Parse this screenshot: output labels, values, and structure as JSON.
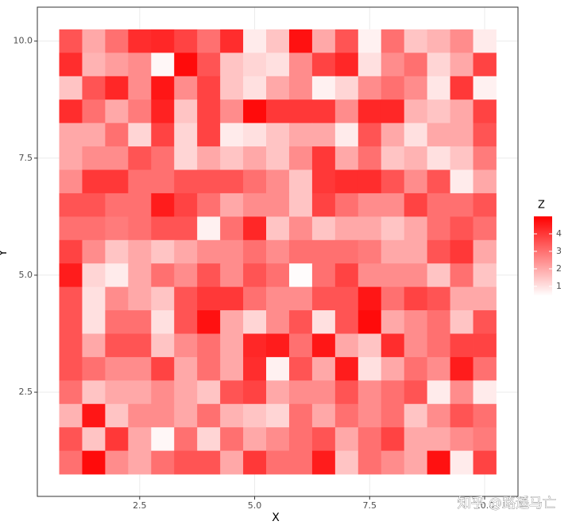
{
  "chart_data": {
    "type": "heatmap",
    "xlabel": "X",
    "ylabel": "Y",
    "x": [
      1,
      1.5,
      2,
      2.5,
      3,
      3.5,
      4,
      4.5,
      5,
      5.5,
      6,
      6.5,
      7,
      7.5,
      8,
      8.5,
      9,
      9.5,
      10
    ],
    "y": [
      10,
      9.5,
      9,
      8.5,
      8,
      7.5,
      7,
      6.5,
      6,
      5.5,
      5,
      4.5,
      4,
      3.5,
      3,
      2.5,
      2,
      1.5,
      1
    ],
    "z": [
      [
        3.5,
        2.0,
        3.0,
        4.2,
        4.3,
        3.8,
        3.0,
        4.2,
        0.8,
        1.5,
        4.7,
        2.0,
        3.5,
        0.7,
        3.0,
        1.5,
        1.8,
        2.5,
        0.8
      ],
      [
        4.2,
        1.8,
        2.2,
        2.5,
        0.6,
        4.8,
        3.5,
        1.5,
        1.2,
        1.0,
        2.5,
        3.8,
        4.3,
        1.0,
        2.5,
        3.0,
        1.2,
        2.0,
        3.8
      ],
      [
        1.5,
        3.5,
        4.3,
        2.5,
        4.6,
        2.5,
        3.8,
        1.5,
        1.0,
        2.0,
        2.5,
        0.7,
        1.2,
        2.5,
        3.0,
        2.5,
        0.9,
        4.0,
        0.7
      ],
      [
        4.2,
        3.0,
        2.0,
        2.8,
        4.4,
        1.5,
        3.8,
        2.5,
        4.8,
        4.0,
        4.0,
        4.0,
        2.5,
        4.3,
        4.3,
        1.8,
        1.5,
        2.0,
        3.8
      ],
      [
        2.0,
        2.0,
        3.0,
        1.2,
        3.8,
        1.2,
        3.8,
        0.8,
        1.0,
        1.5,
        2.0,
        2.0,
        0.8,
        3.5,
        2.0,
        1.0,
        2.0,
        2.0,
        3.5
      ],
      [
        2.0,
        2.5,
        2.5,
        3.5,
        3.0,
        1.2,
        2.0,
        1.5,
        2.0,
        1.5,
        2.5,
        4.0,
        2.0,
        3.0,
        1.5,
        1.8,
        1.0,
        1.5,
        2.8
      ],
      [
        2.5,
        4.0,
        4.0,
        3.0,
        3.0,
        3.5,
        3.5,
        3.5,
        3.0,
        2.5,
        1.5,
        4.0,
        4.2,
        4.2,
        3.5,
        2.5,
        3.5,
        0.8,
        2.0
      ],
      [
        3.5,
        3.5,
        3.0,
        3.0,
        4.5,
        3.8,
        3.0,
        2.0,
        2.5,
        2.5,
        1.5,
        3.8,
        3.0,
        2.5,
        2.5,
        3.8,
        3.0,
        3.0,
        3.5
      ],
      [
        3.0,
        3.0,
        2.8,
        3.0,
        3.5,
        3.5,
        0.7,
        3.0,
        4.3,
        1.5,
        2.5,
        1.5,
        2.0,
        2.0,
        1.5,
        2.0,
        3.0,
        3.5,
        3.0
      ],
      [
        3.8,
        2.5,
        1.5,
        2.0,
        1.5,
        2.0,
        2.5,
        2.5,
        3.0,
        2.5,
        3.0,
        3.0,
        3.0,
        2.8,
        2.0,
        2.0,
        3.5,
        4.0,
        2.0
      ],
      [
        4.5,
        1.2,
        0.8,
        2.0,
        3.0,
        2.5,
        3.5,
        2.5,
        3.5,
        3.0,
        0.5,
        3.0,
        3.8,
        2.5,
        2.5,
        2.5,
        1.5,
        3.0,
        1.5
      ],
      [
        3.5,
        1.0,
        2.5,
        2.0,
        1.5,
        3.5,
        4.0,
        4.0,
        3.0,
        2.5,
        2.5,
        3.5,
        3.5,
        4.6,
        3.0,
        3.8,
        3.5,
        2.0,
        2.0
      ],
      [
        3.5,
        1.0,
        3.0,
        3.0,
        1.0,
        3.5,
        4.7,
        2.0,
        1.2,
        2.5,
        3.5,
        1.0,
        3.5,
        4.8,
        2.0,
        2.5,
        3.0,
        1.5,
        3.5
      ],
      [
        3.5,
        2.0,
        3.5,
        3.5,
        1.5,
        2.5,
        3.0,
        2.0,
        4.3,
        4.5,
        3.0,
        4.6,
        2.0,
        1.5,
        4.2,
        2.5,
        3.0,
        3.8,
        3.8
      ],
      [
        3.5,
        3.0,
        2.5,
        2.5,
        3.8,
        2.0,
        3.0,
        2.0,
        4.2,
        0.7,
        3.5,
        2.0,
        4.5,
        1.0,
        2.0,
        3.0,
        2.5,
        4.5,
        3.0
      ],
      [
        3.0,
        1.5,
        2.0,
        2.0,
        2.5,
        2.0,
        1.5,
        3.5,
        3.8,
        2.0,
        2.5,
        2.5,
        3.5,
        2.5,
        3.0,
        3.5,
        0.8,
        2.5,
        0.8
      ],
      [
        1.8,
        4.6,
        1.5,
        2.5,
        2.5,
        2.0,
        3.0,
        1.8,
        1.5,
        1.2,
        3.0,
        2.0,
        3.0,
        2.5,
        3.0,
        1.5,
        2.5,
        3.5,
        3.0
      ],
      [
        3.5,
        1.5,
        4.0,
        2.0,
        0.6,
        3.0,
        1.2,
        3.0,
        2.0,
        2.5,
        3.0,
        3.5,
        2.0,
        3.0,
        3.8,
        2.0,
        2.0,
        2.5,
        2.8
      ],
      [
        3.0,
        4.8,
        2.5,
        2.0,
        3.0,
        3.5,
        3.5,
        2.0,
        4.0,
        3.0,
        3.0,
        4.5,
        1.5,
        3.0,
        2.5,
        2.0,
        4.7,
        0.8,
        3.8
      ]
    ],
    "xlim": [
      0.275,
      10.725
    ],
    "ylim": [
      0.275,
      10.725
    ],
    "xticks": [
      2.5,
      {
        "value": 5,
        "label": "5.0"
      },
      7.5,
      {
        "value": 10,
        "label": "10.0"
      }
    ],
    "yticks": [
      2.5,
      {
        "value": 5,
        "label": "5.0"
      },
      7.5,
      {
        "value": 10,
        "label": "10.0"
      }
    ],
    "grid": true,
    "legend": {
      "title": "Z",
      "ticks": [
        1,
        2,
        3,
        4
      ],
      "limits": [
        0.45,
        5.0
      ],
      "low_color": "#ffffff",
      "high_color": "#ff0000"
    }
  },
  "watermark": "知乎 @路遥马亡"
}
